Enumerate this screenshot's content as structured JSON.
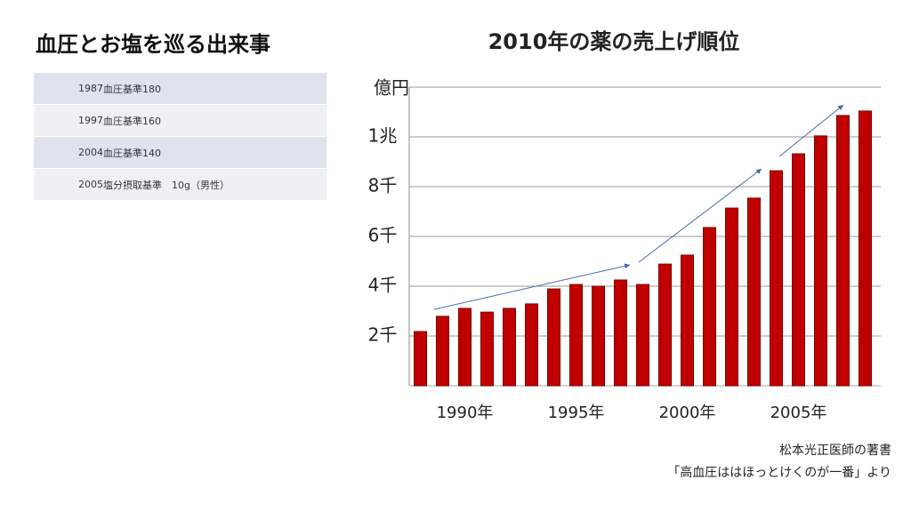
{
  "left_title": "血圧とお塩を巡る出来事",
  "table": {
    "rows": [
      [
        "1987",
        "血圧基準180"
      ],
      [
        "1997",
        "血圧基準160"
      ],
      [
        "2004",
        "血圧基準140"
      ],
      [
        "2005",
        "塩分摂取基準　10g（男性）"
      ]
    ]
  },
  "source": [
    "松本光正医師の著書",
    "「高血圧ははほっとけくのが一番」より"
  ],
  "chart_data": {
    "type": "bar",
    "title": "2010年の薬の売上げ順位",
    "y_label": "億円",
    "categories": [
      null,
      null,
      "1990年",
      null,
      null,
      null,
      null,
      "1995年",
      null,
      null,
      null,
      null,
      "2000年",
      null,
      null,
      null,
      null,
      "2005年",
      null,
      null,
      null
    ],
    "values": [
      2180,
      2790,
      3110,
      2960,
      3110,
      3290,
      3890,
      4070,
      4000,
      4250,
      4070,
      4890,
      5250,
      6360,
      7140,
      7540,
      8640,
      9320,
      10040,
      10860,
      11040
    ],
    "color": "#c00000",
    "ylim": [
      0,
      12000
    ],
    "yticks": [
      {
        "value": 2000,
        "label": "2千"
      },
      {
        "value": 4000,
        "label": "4千"
      },
      {
        "value": 6000,
        "label": "6千"
      },
      {
        "value": 8000,
        "label": "8千"
      },
      {
        "value": 10000,
        "label": "1兆"
      }
    ],
    "grid": true
  }
}
